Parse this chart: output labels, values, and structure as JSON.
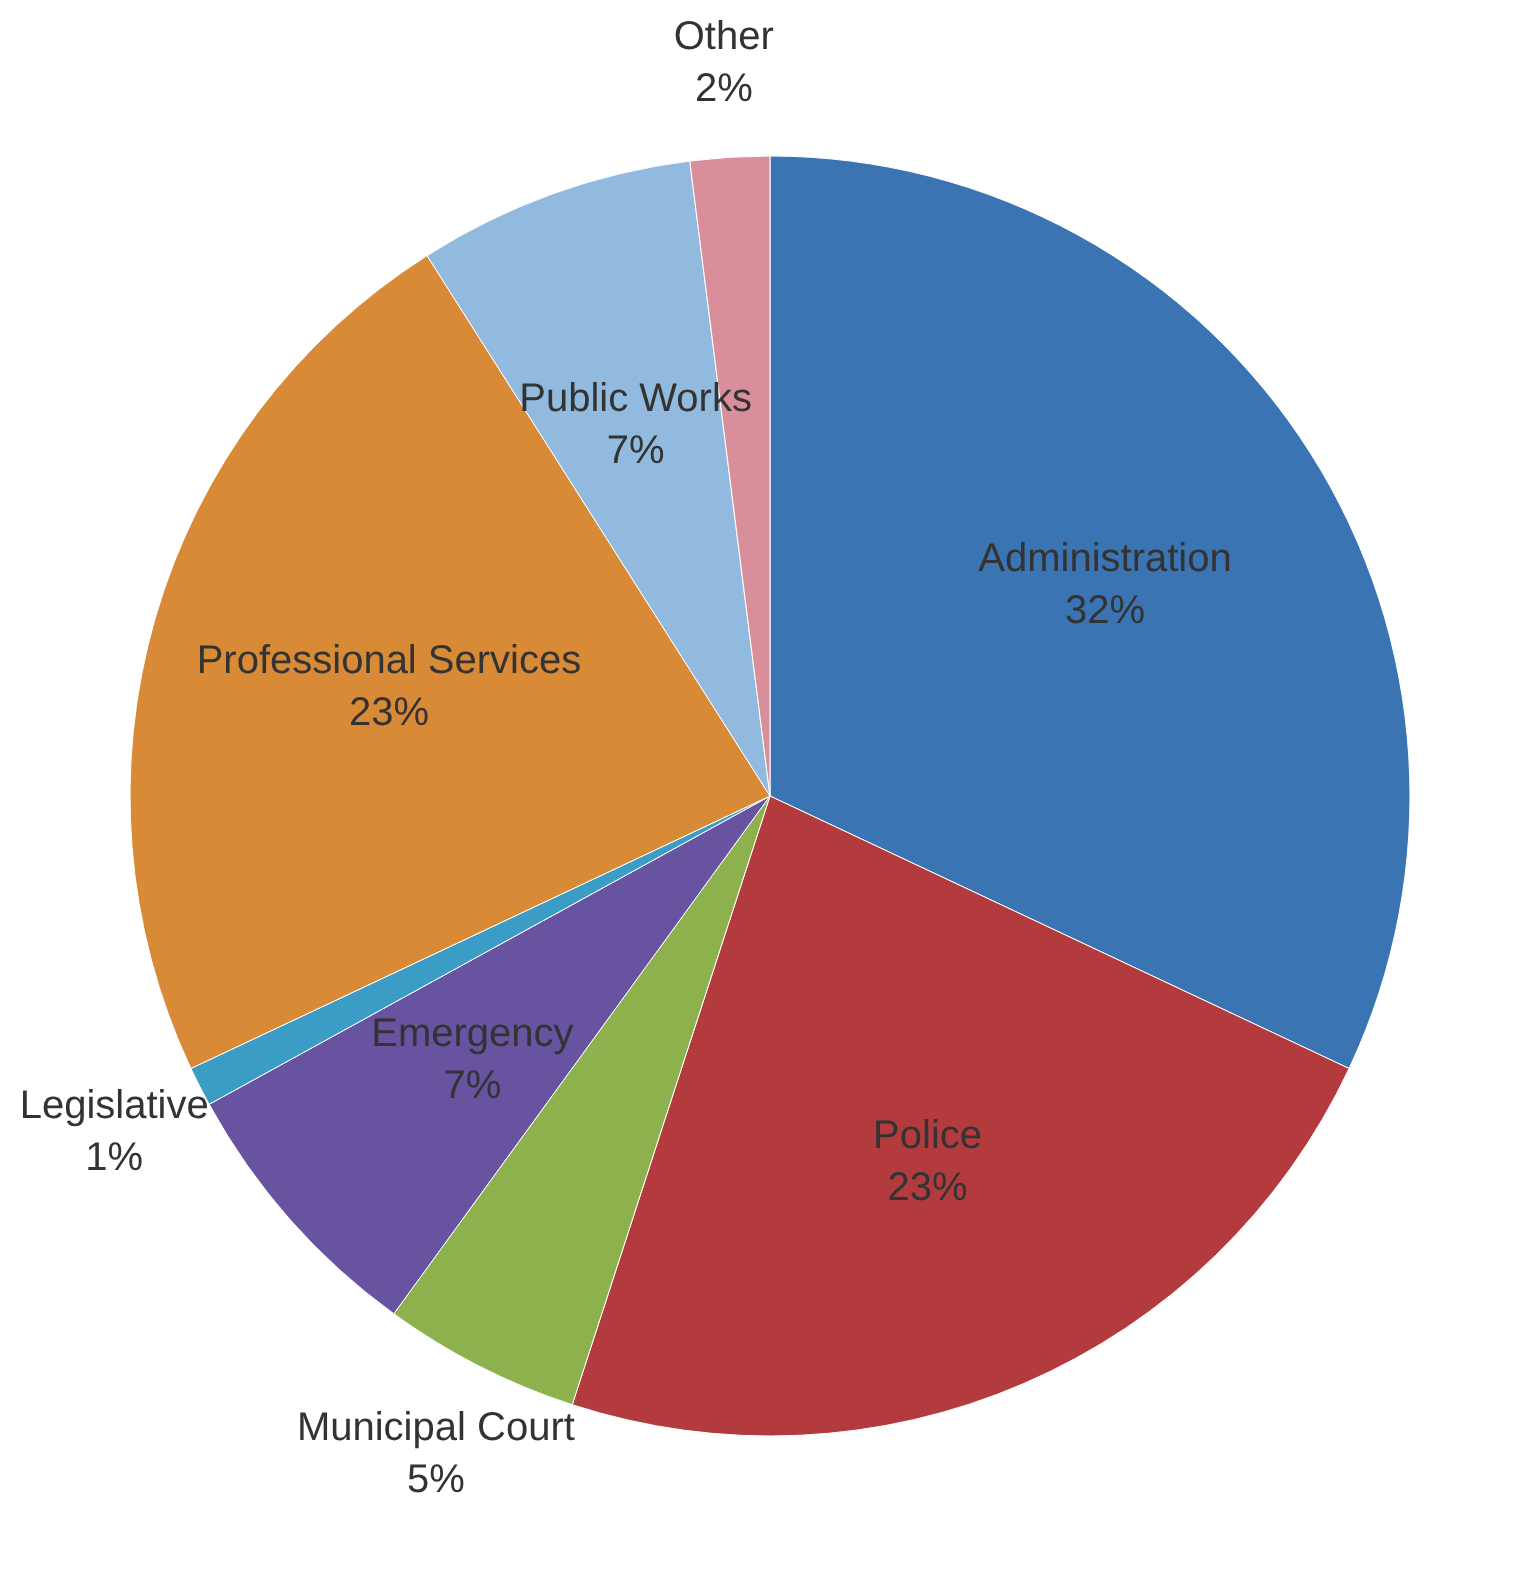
{
  "chart_data": {
    "type": "pie",
    "categories": [
      "Administration",
      "Police",
      "Municipal Court",
      "Emergency",
      "Legislative",
      "Professional Services",
      "Public Works",
      "Other"
    ],
    "values": [
      32,
      23,
      5,
      7,
      1,
      23,
      7,
      2
    ],
    "value_labels": [
      "32%",
      "23%",
      "5%",
      "7%",
      "1%",
      "23%",
      "7%",
      "2%"
    ],
    "colors": [
      "#3b74b3",
      "#b33b3e",
      "#8db14c",
      "#6753a0",
      "#3b9cc6",
      "#d98a36",
      "#92badf",
      "#d98f9b"
    ]
  }
}
